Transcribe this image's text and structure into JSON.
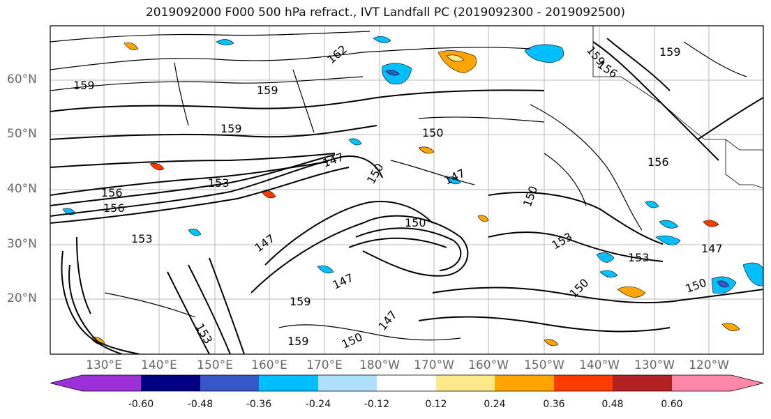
{
  "title": "2019092000 F000 500 hPa refract., IVT Landfall PC (2019092300 - 2019092500)",
  "lat_labels": [
    "60°N",
    "50°N",
    "40°N",
    "30°N",
    "20°N"
  ],
  "lon_labels": [
    "130°E",
    "140°E",
    "150°E",
    "160°E",
    "170°E",
    "180°W",
    "170°W",
    "160°W",
    "150°W",
    "140°W",
    "130°W",
    "120°W"
  ],
  "colorbar": {
    "colors": [
      "#9b30d9",
      "#000080",
      "#3557c8",
      "#00bfff",
      "#b0e0ff",
      "#ffffff",
      "#fde98a",
      "#ffa500",
      "#ff3c00",
      "#b22222",
      "#ff88aa"
    ],
    "tick_labels": [
      "-0.60",
      "-0.48",
      "-0.36",
      "-0.24",
      "-0.12",
      "0.12",
      "0.24",
      "0.36",
      "0.48",
      "0.60"
    ]
  },
  "contour_labels": [
    "159",
    "162",
    "159",
    "159",
    "159",
    "156",
    "159",
    "150",
    "147",
    "156",
    "153",
    "150",
    "156",
    "153",
    "147",
    "150",
    "150",
    "153",
    "153",
    "147",
    "147",
    "159",
    "147",
    "150",
    "150",
    "159",
    "150",
    "153",
    "147",
    "156"
  ]
}
